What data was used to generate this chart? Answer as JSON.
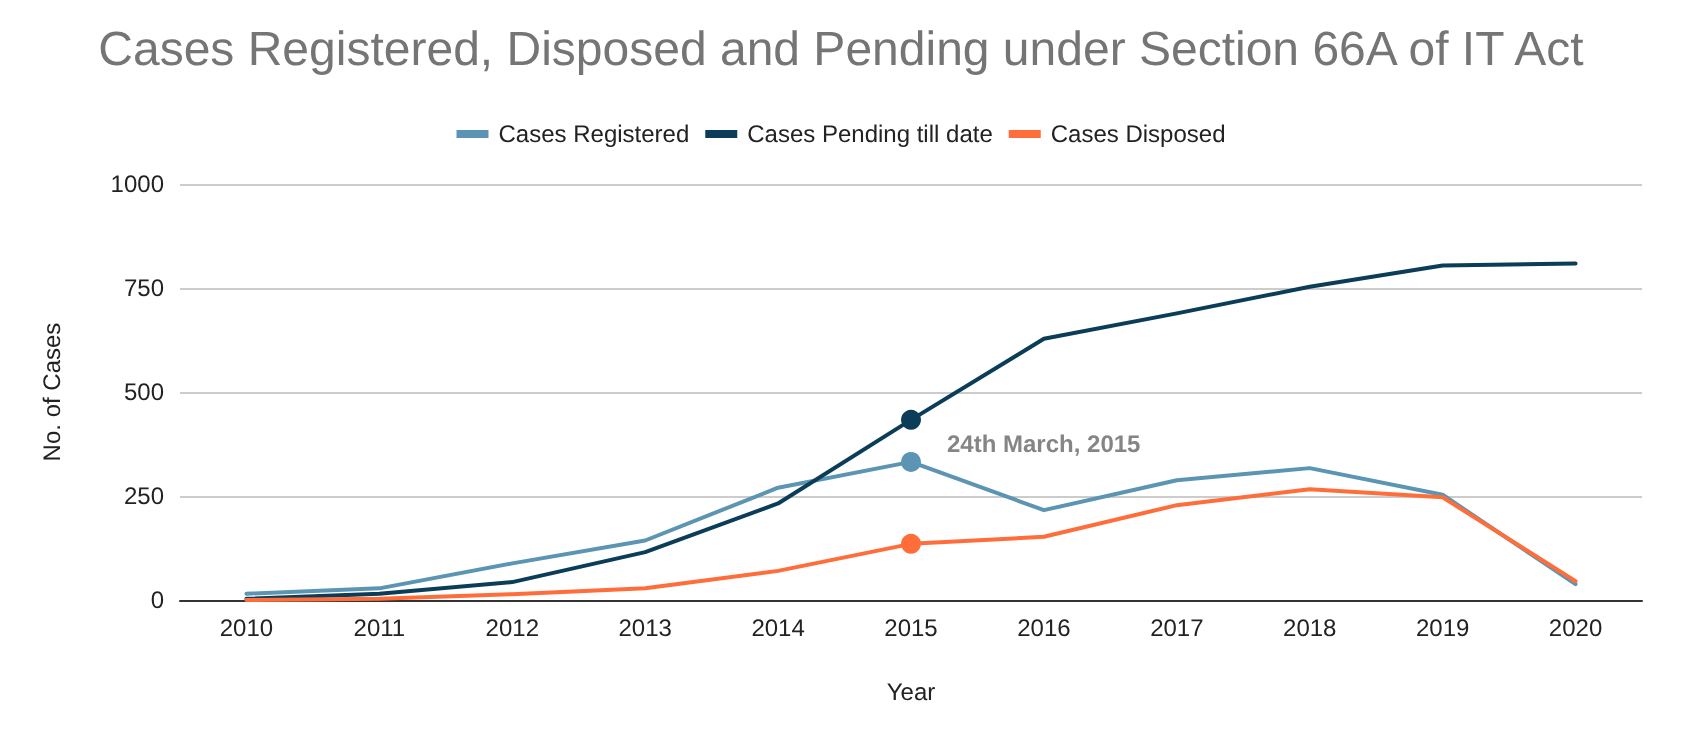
{
  "chart_data": {
    "type": "line",
    "title": "Cases Registered, Disposed and Pending under Section 66A of IT Act",
    "xlabel": "Year",
    "ylabel": "No. of Cases",
    "categories": [
      "2010",
      "2011",
      "2012",
      "2013",
      "2014",
      "2015",
      "2016",
      "2017",
      "2018",
      "2019",
      "2020"
    ],
    "series": [
      {
        "name": "Cases Registered",
        "color": "#5b95b3",
        "values": [
          15,
          28,
          88,
          143,
          270,
          332,
          216,
          288,
          317,
          253,
          38
        ]
      },
      {
        "name": "Cases Pending till date",
        "color": "#0b3d58",
        "values": [
          3,
          15,
          43,
          115,
          232,
          433,
          628,
          689,
          753,
          804,
          809
        ]
      },
      {
        "name": "Cases Disposed",
        "color": "#ff6d3a",
        "values": [
          0,
          3,
          14,
          28,
          70,
          135,
          152,
          228,
          266,
          247,
          45
        ]
      }
    ],
    "annotations": [
      {
        "text": "24th March, 2015",
        "x": "2015",
        "y": 375
      }
    ],
    "ylim": [
      0,
      1000
    ],
    "yticks": [
      0,
      250,
      500,
      750,
      1000
    ],
    "grid": "y",
    "legend": "top",
    "marker": "none",
    "line_style": "solid"
  }
}
